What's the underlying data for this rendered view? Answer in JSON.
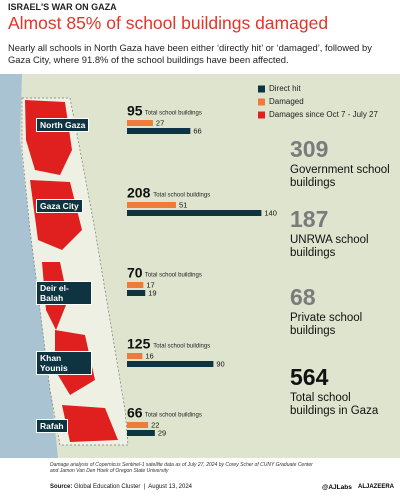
{
  "header": {
    "kicker": "ISRAEL'S WAR ON GAZA",
    "title": "Almost 85% of school buildings damaged",
    "subtitle": "Nearly all schools in North Gaza have been either ‘directly hit’ or ‘damaged’, followed by Gaza City, where 91.8% of the school buildings have been affected."
  },
  "chart_data": {
    "type": "bar",
    "categories": [
      "North Gaza",
      "Gaza City",
      "Deir el-Balah",
      "Khan Younis",
      "Rafah"
    ],
    "totals": [
      95,
      208,
      70,
      125,
      66
    ],
    "total_label": "Total school buildings",
    "series": [
      {
        "name": "Direct hit",
        "color": "#0f3441",
        "values": [
          66,
          140,
          19,
          90,
          29
        ]
      },
      {
        "name": "Damaged",
        "color": "#f07a3c",
        "values": [
          27,
          51,
          17,
          16,
          22
        ]
      }
    ],
    "map_legend": {
      "name": "Damages since Oct 7 - July 27",
      "color": "#e0201e"
    }
  },
  "stats": [
    {
      "value": 309,
      "label": "Government school buildings"
    },
    {
      "value": 187,
      "label": "UNRWA school buildings"
    },
    {
      "value": 68,
      "label": "Private school buildings"
    },
    {
      "value": 564,
      "label": "Total school buildings in Gaza"
    }
  ],
  "footer": {
    "note": "Damage analysis of Copernicus Sentinel-1 satellite data as of July 27, 2024 by Corey Scher of CUNY Graduate Center and Jamon Van Den Hoek of Oregon State University",
    "source_label": "Source:",
    "source": "Global Education Cluster",
    "date": "August 13, 2024",
    "handle": "@AJLabs",
    "brand": "ALJAZEERA"
  }
}
